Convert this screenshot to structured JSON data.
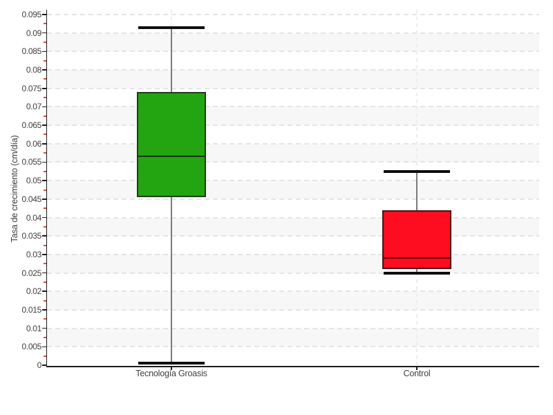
{
  "chart_data": {
    "type": "boxplot",
    "title": "",
    "xlabel": "",
    "ylabel": "Tasa de crecimiento (cm/día)",
    "ylim": [
      0,
      0.095
    ],
    "ytick_step": 0.005,
    "y_minor_tick_step": 0.0025,
    "ytick_labels": [
      "0",
      "0.005",
      "0.01",
      "0.015",
      "0.02",
      "0.025",
      "0.03",
      "0.035",
      "0.04",
      "0.045",
      "0.05",
      "0.055",
      "0.06",
      "0.065",
      "0.07",
      "0.075",
      "0.08",
      "0.085",
      "0.09",
      "0.095"
    ],
    "categories": [
      "Tecnología Groasis",
      "Control"
    ],
    "series": [
      {
        "key": "groasis",
        "name": "Tecnología Groasis",
        "min": 0.0005,
        "q1": 0.0455,
        "median": 0.0565,
        "q3": 0.074,
        "max": 0.0915,
        "fill": "#22a510",
        "border": "#1e3c14",
        "median_color": "#123508"
      },
      {
        "key": "control",
        "name": "Control",
        "min": 0.025,
        "q1": 0.026,
        "median": 0.029,
        "q3": 0.042,
        "max": 0.0525,
        "fill": "#fd0d1f",
        "border": "#4a1216",
        "median_color": "#5c0a12"
      }
    ],
    "legend": "none",
    "grid": "horizontal dashed gridlines at each major tick, alternating background bands, vertical dashed gridline at each category",
    "style": {
      "band_color": "#f7f7f7",
      "h_grid_color": "#e4e4e4",
      "v_grid_color": "#ededed",
      "axis_color": "#1a1a1a",
      "minor_tick_color": "#e04545",
      "whisker_color": "#7a7a7a",
      "cap_color": "#0d0d0d",
      "label_color": "#3d3d3d",
      "background": "#ffffff"
    }
  }
}
